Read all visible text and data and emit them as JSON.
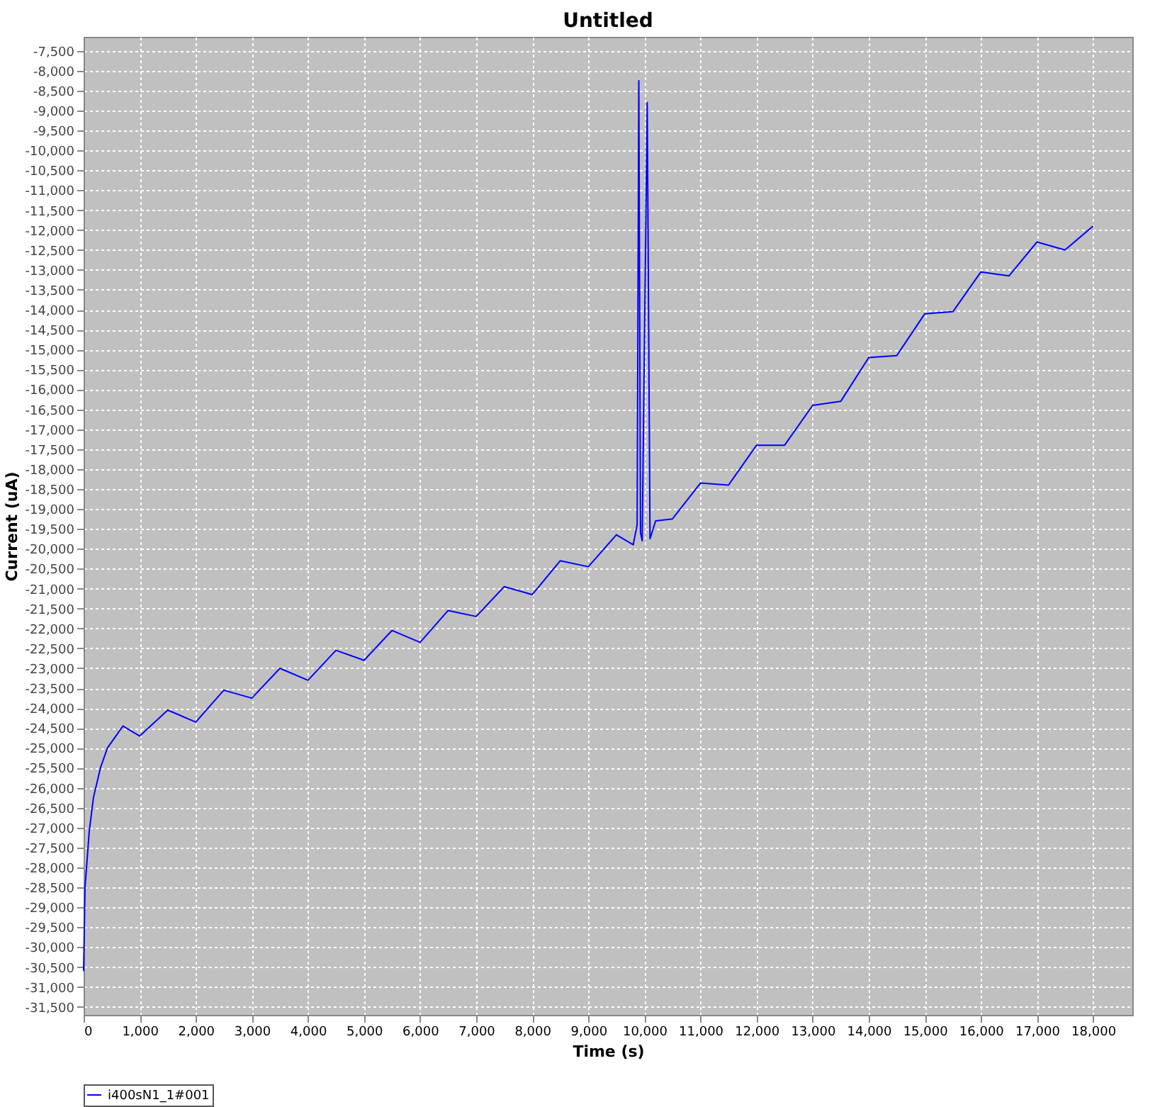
{
  "chart_data": {
    "type": "line",
    "title": "Untitled",
    "xlabel": "Time (s)",
    "ylabel": "Current (uA)",
    "xlim": [
      0,
      18700
    ],
    "ylim": [
      -31700,
      -7150
    ],
    "xticks": [
      0,
      {
        "value": 1000,
        "label": "1,000"
      },
      {
        "value": 2000,
        "label": "2,000"
      },
      {
        "value": 3000,
        "label": "3,000"
      },
      {
        "value": 4000,
        "label": "4,000"
      },
      {
        "value": 5000,
        "label": "5,000"
      },
      {
        "value": 6000,
        "label": "6,000"
      },
      {
        "value": 7000,
        "label": "7,000"
      },
      {
        "value": 8000,
        "label": "8,000"
      },
      {
        "value": 9000,
        "label": "9,000"
      },
      {
        "value": 10000,
        "label": "10,000"
      },
      {
        "value": 11000,
        "label": "11,000"
      },
      {
        "value": 12000,
        "label": "12,000"
      },
      {
        "value": 13000,
        "label": "13,000"
      },
      {
        "value": 14000,
        "label": "14,000"
      },
      {
        "value": 15000,
        "label": "15,000"
      },
      {
        "value": 16000,
        "label": "16,000"
      },
      {
        "value": 17000,
        "label": "17,000"
      },
      {
        "value": 18000,
        "label": "18,000"
      }
    ],
    "yticks": [
      {
        "value": -7500,
        "label": "-7,500"
      },
      {
        "value": -8000,
        "label": "-8,000"
      },
      {
        "value": -8500,
        "label": "-8,500"
      },
      {
        "value": -9000,
        "label": "-9,000"
      },
      {
        "value": -9500,
        "label": "-9,500"
      },
      {
        "value": -10000,
        "label": "-10,000"
      },
      {
        "value": -10500,
        "label": "-10,500"
      },
      {
        "value": -11000,
        "label": "-11,000"
      },
      {
        "value": -11500,
        "label": "-11,500"
      },
      {
        "value": -12000,
        "label": "-12,000"
      },
      {
        "value": -12500,
        "label": "-12,500"
      },
      {
        "value": -13000,
        "label": "-13,000"
      },
      {
        "value": -13500,
        "label": "-13,500"
      },
      {
        "value": -14000,
        "label": "-14,000"
      },
      {
        "value": -14500,
        "label": "-14,500"
      },
      {
        "value": -15000,
        "label": "-15,000"
      },
      {
        "value": -15500,
        "label": "-15,500"
      },
      {
        "value": -16000,
        "label": "-16,000"
      },
      {
        "value": -16500,
        "label": "-16,500"
      },
      {
        "value": -17000,
        "label": "-17,000"
      },
      {
        "value": -17500,
        "label": "-17,500"
      },
      {
        "value": -18000,
        "label": "-18,000"
      },
      {
        "value": -18500,
        "label": "-18,500"
      },
      {
        "value": -19000,
        "label": "-19,000"
      },
      {
        "value": -19500,
        "label": "-19,500"
      },
      {
        "value": -20000,
        "label": "-20,000"
      },
      {
        "value": -20500,
        "label": "-20,500"
      },
      {
        "value": -21000,
        "label": "-21,000"
      },
      {
        "value": -21500,
        "label": "-21,500"
      },
      {
        "value": -22000,
        "label": "-22,000"
      },
      {
        "value": -22500,
        "label": "-22,500"
      },
      {
        "value": -23000,
        "label": "-23,000"
      },
      {
        "value": -23500,
        "label": "-23,500"
      },
      {
        "value": -24000,
        "label": "-24,000"
      },
      {
        "value": -24500,
        "label": "-24,500"
      },
      {
        "value": -25000,
        "label": "-25,000"
      },
      {
        "value": -25500,
        "label": "-25,500"
      },
      {
        "value": -26000,
        "label": "-26,000"
      },
      {
        "value": -26500,
        "label": "-26,500"
      },
      {
        "value": -27000,
        "label": "-27,000"
      },
      {
        "value": -27500,
        "label": "-27,500"
      },
      {
        "value": -28000,
        "label": "-28,000"
      },
      {
        "value": -28500,
        "label": "-28,500"
      },
      {
        "value": -29000,
        "label": "-29,000"
      },
      {
        "value": -29500,
        "label": "-29,500"
      },
      {
        "value": -30000,
        "label": "-30,000"
      },
      {
        "value": -30500,
        "label": "-30,500"
      },
      {
        "value": -31000,
        "label": "-31,000"
      },
      {
        "value": -31500,
        "label": "-31,500"
      }
    ],
    "grid": true,
    "legend": "bottom",
    "marker": "none",
    "line_style": "solid",
    "series": [
      {
        "name": "i400sN1_1#001",
        "color": "#0000ff",
        "x": [
          0,
          25,
          100,
          175,
          300,
          425,
          550,
          700,
          1000,
          1500,
          2000,
          2500,
          3000,
          3500,
          4000,
          4500,
          5000,
          5500,
          6000,
          6500,
          7000,
          7500,
          8000,
          8500,
          9000,
          9500,
          9800,
          9870,
          9900,
          9930,
          9960,
          10050,
          10100,
          10200,
          10500,
          11000,
          11500,
          12000,
          12500,
          13000,
          13500,
          14000,
          14500,
          15000,
          15500,
          16000,
          16500,
          17000,
          17500,
          18000
        ],
        "values": [
          -30600,
          -28500,
          -27100,
          -26250,
          -25500,
          -25000,
          -24750,
          -24450,
          -24700,
          -24050,
          -24350,
          -23550,
          -23750,
          -23000,
          -23300,
          -22550,
          -22800,
          -22050,
          -22350,
          -21550,
          -21700,
          -20950,
          -21150,
          -20300,
          -20450,
          -19650,
          -19900,
          -19400,
          -8250,
          -19600,
          -19800,
          -8800,
          -19750,
          -19300,
          -19250,
          -18350,
          -18400,
          -17400,
          -17400,
          -16400,
          -16300,
          -15200,
          -15150,
          -14100,
          -14050,
          -13050,
          -13150,
          -12300,
          -12500,
          -11900
        ]
      }
    ]
  }
}
